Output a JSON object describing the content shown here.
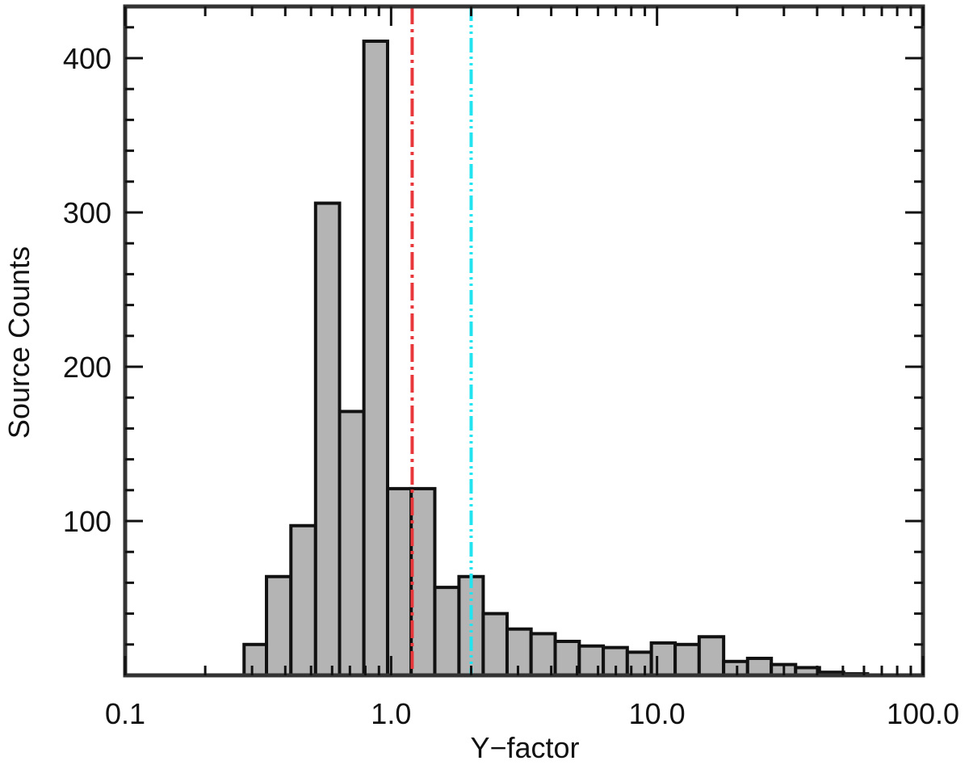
{
  "chart_data": {
    "type": "bar",
    "xlabel": "Y−factor",
    "ylabel": "Source Counts",
    "xscale": "log",
    "xlim": [
      0.1,
      100.0
    ],
    "ylim": [
      0,
      400
    ],
    "grid": false,
    "x_ticks": [
      {
        "value": 0.1,
        "label": "0.1"
      },
      {
        "value": 1.0,
        "label": "1.0"
      },
      {
        "value": 10.0,
        "label": "10.0"
      },
      {
        "value": 100.0,
        "label": "100.0"
      }
    ],
    "y_ticks": [
      {
        "value": 100,
        "label": "100"
      },
      {
        "value": 200,
        "label": "200"
      },
      {
        "value": 300,
        "label": "300"
      },
      {
        "value": 400,
        "label": "400"
      }
    ],
    "bins": [
      {
        "x0": 0.28,
        "x1": 0.34,
        "count": 20
      },
      {
        "x0": 0.34,
        "x1": 0.42,
        "count": 64
      },
      {
        "x0": 0.42,
        "x1": 0.52,
        "count": 97
      },
      {
        "x0": 0.52,
        "x1": 0.64,
        "count": 306
      },
      {
        "x0": 0.64,
        "x1": 0.79,
        "count": 171
      },
      {
        "x0": 0.79,
        "x1": 0.97,
        "count": 411
      },
      {
        "x0": 0.97,
        "x1": 1.19,
        "count": 121
      },
      {
        "x0": 1.19,
        "x1": 1.46,
        "count": 121
      },
      {
        "x0": 1.46,
        "x1": 1.8,
        "count": 57
      },
      {
        "x0": 1.8,
        "x1": 2.22,
        "count": 64
      },
      {
        "x0": 2.22,
        "x1": 2.73,
        "count": 40
      },
      {
        "x0": 2.73,
        "x1": 3.36,
        "count": 30
      },
      {
        "x0": 3.36,
        "x1": 4.14,
        "count": 27
      },
      {
        "x0": 4.14,
        "x1": 5.1,
        "count": 22
      },
      {
        "x0": 5.1,
        "x1": 6.28,
        "count": 19
      },
      {
        "x0": 6.28,
        "x1": 7.73,
        "count": 18
      },
      {
        "x0": 7.73,
        "x1": 9.52,
        "count": 15
      },
      {
        "x0": 9.52,
        "x1": 11.7,
        "count": 21
      },
      {
        "x0": 11.7,
        "x1": 14.4,
        "count": 20
      },
      {
        "x0": 14.4,
        "x1": 17.8,
        "count": 25
      },
      {
        "x0": 17.8,
        "x1": 21.9,
        "count": 9
      },
      {
        "x0": 21.9,
        "x1": 26.9,
        "count": 11
      },
      {
        "x0": 26.9,
        "x1": 33.2,
        "count": 7
      },
      {
        "x0": 33.2,
        "x1": 40.8,
        "count": 5
      },
      {
        "x0": 40.8,
        "x1": 50.3,
        "count": 2
      },
      {
        "x0": 50.3,
        "x1": 61.9,
        "count": 1
      }
    ],
    "vlines": [
      {
        "x": 1.2,
        "color": "#e8373a",
        "style": "dash-dot"
      },
      {
        "x": 2.0,
        "color": "#22e3f0",
        "style": "dash-dot-dot"
      }
    ],
    "colors": {
      "bar_fill": "#b4b4b4",
      "bar_edge": "#111111",
      "axis": "#333333"
    }
  }
}
